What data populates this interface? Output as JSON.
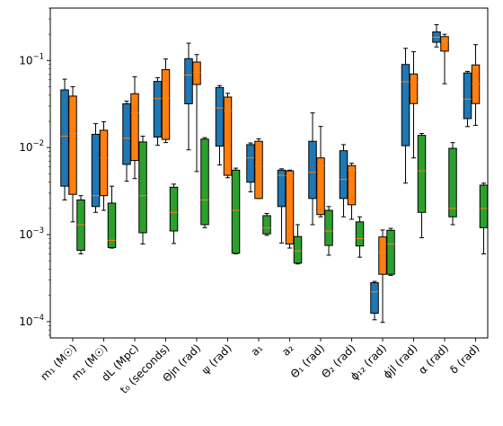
{
  "chart_data": {
    "type": "box",
    "title": "",
    "xlabel": "",
    "ylabel": "",
    "y_scale": "log",
    "ylim": [
      6.5e-05,
      0.4
    ],
    "y_ticks": [
      {
        "value": 0.0001,
        "base": "10",
        "exp": "−4"
      },
      {
        "value": 0.001,
        "base": "10",
        "exp": "−3"
      },
      {
        "value": 0.01,
        "base": "10",
        "exp": "−2"
      },
      {
        "value": 0.1,
        "base": "10",
        "exp": "−1"
      }
    ],
    "categories": [
      {
        "label": "m₁ (M☉)"
      },
      {
        "label": "m₂ (M☉)"
      },
      {
        "label": "dL (Mpc)"
      },
      {
        "label": "t₀ (seconds)"
      },
      {
        "label": "Θjn (rad)"
      },
      {
        "label": "ψ (rad)"
      },
      {
        "label": "a₁"
      },
      {
        "label": "a₂"
      },
      {
        "label": "Θ₁ (rad)"
      },
      {
        "label": "Θ₂ (rad)"
      },
      {
        "label": "ϕ₁₂ (rad)"
      },
      {
        "label": "ϕjl (rad)"
      },
      {
        "label": "α (rad)"
      },
      {
        "label": "δ (rad)"
      }
    ],
    "grid": false,
    "legend": "none",
    "series": [
      {
        "color": "#1f77b4",
        "boxes": [
          {
            "whislo": 0.0025,
            "q1": 0.0036,
            "med": 0.0135,
            "q3": 0.046,
            "whishi": 0.061
          },
          {
            "whislo": 0.0018,
            "q1": 0.0021,
            "med": 0.0028,
            "q3": 0.0142,
            "whishi": 0.0188
          },
          {
            "whislo": 0.0041,
            "q1": 0.0064,
            "med": 0.0128,
            "q3": 0.0318,
            "whishi": 0.0342
          },
          {
            "whislo": 0.0106,
            "q1": 0.0132,
            "med": 0.0365,
            "q3": 0.0575,
            "whishi": 0.0635
          },
          {
            "whislo": 0.0094,
            "q1": 0.0318,
            "med": 0.068,
            "q3": 0.105,
            "whishi": 0.158
          },
          {
            "whislo": 0.0063,
            "q1": 0.0104,
            "med": 0.0285,
            "q3": 0.049,
            "whishi": 0.0515
          },
          {
            "whislo": 0.0031,
            "q1": 0.004,
            "med": 0.0076,
            "q3": 0.0108,
            "whishi": 0.0113
          },
          {
            "whislo": 0.0008,
            "q1": 0.0021,
            "med": 0.0048,
            "q3": 0.0055,
            "whishi": 0.0057
          },
          {
            "whislo": 0.0013,
            "q1": 0.0026,
            "med": 0.0052,
            "q3": 0.0118,
            "whishi": 0.025
          },
          {
            "whislo": 0.0016,
            "q1": 0.0026,
            "med": 0.0043,
            "q3": 0.0092,
            "whishi": 0.0108
          },
          {
            "whislo": 0.000105,
            "q1": 0.000125,
            "med": 0.00022,
            "q3": 0.00028,
            "whishi": 0.00029
          },
          {
            "whislo": 0.0039,
            "q1": 0.0105,
            "med": 0.057,
            "q3": 0.09,
            "whishi": 0.138
          },
          {
            "whislo": 0.143,
            "q1": 0.162,
            "med": 0.185,
            "q3": 0.213,
            "whishi": 0.258
          },
          {
            "whislo": 0.0174,
            "q1": 0.0215,
            "med": 0.036,
            "q3": 0.072,
            "whishi": 0.075
          }
        ]
      },
      {
        "color": "#ff7f0e",
        "boxes": [
          {
            "whislo": 0.0014,
            "q1": 0.0029,
            "med": 0.0145,
            "q3": 0.039,
            "whishi": 0.05
          },
          {
            "whislo": 0.0019,
            "q1": 0.0028,
            "med": 0.0076,
            "q3": 0.0158,
            "whishi": 0.0198
          },
          {
            "whislo": 0.0044,
            "q1": 0.0071,
            "med": 0.025,
            "q3": 0.0415,
            "whishi": 0.065
          },
          {
            "whislo": 0.0114,
            "q1": 0.0124,
            "med": 0.037,
            "q3": 0.0785,
            "whishi": 0.104
          },
          {
            "whislo": 0.0053,
            "q1": 0.053,
            "med": 0.073,
            "q3": 0.096,
            "whishi": 0.117
          },
          {
            "whislo": 0.0045,
            "q1": 0.0048,
            "med": 0.0265,
            "q3": 0.038,
            "whishi": 0.042
          },
          {
            "whislo": 0.0026,
            "q1": 0.0026,
            "med": 0.0061,
            "q3": 0.0118,
            "whishi": 0.0126
          },
          {
            "whislo": 0.0007,
            "q1": 0.00078,
            "med": 0.0047,
            "q3": 0.0054,
            "whishi": 0.0055
          },
          {
            "whislo": 0.0016,
            "q1": 0.0017,
            "med": 0.0062,
            "q3": 0.0076,
            "whishi": 0.0175
          },
          {
            "whislo": 0.0015,
            "q1": 0.0022,
            "med": 0.0055,
            "q3": 0.0062,
            "whishi": 0.0066
          },
          {
            "whislo": 9.8e-05,
            "q1": 0.00035,
            "med": 0.00062,
            "q3": 0.00094,
            "whishi": 0.00113
          },
          {
            "whislo": 0.0076,
            "q1": 0.032,
            "med": 0.056,
            "q3": 0.07,
            "whishi": 0.126
          },
          {
            "whislo": 0.054,
            "q1": 0.128,
            "med": 0.17,
            "q3": 0.188,
            "whishi": 0.2
          },
          {
            "whislo": 0.018,
            "q1": 0.032,
            "med": 0.054,
            "q3": 0.089,
            "whishi": 0.152
          }
        ]
      },
      {
        "color": "#2ca02c",
        "boxes": [
          {
            "whislo": 0.0006,
            "q1": 0.00066,
            "med": 0.0013,
            "q3": 0.0025,
            "whishi": 0.0028
          },
          {
            "whislo": 0.0007,
            "q1": 0.00071,
            "med": 0.00086,
            "q3": 0.0023,
            "whishi": 0.0036
          },
          {
            "whislo": 0.00078,
            "q1": 0.00105,
            "med": 0.0028,
            "q3": 0.0116,
            "whishi": 0.0135
          },
          {
            "whislo": 0.00079,
            "q1": 0.0011,
            "med": 0.0018,
            "q3": 0.0035,
            "whishi": 0.0038
          },
          {
            "whislo": 0.0012,
            "q1": 0.0013,
            "med": 0.0025,
            "q3": 0.0125,
            "whishi": 0.013
          },
          {
            "whislo": 0.0006,
            "q1": 0.00061,
            "med": 0.0019,
            "q3": 0.0055,
            "whishi": 0.0058
          },
          {
            "whislo": 0.00098,
            "q1": 0.00102,
            "med": 0.0012,
            "q3": 0.00165,
            "whishi": 0.00175
          },
          {
            "whislo": 0.00046,
            "q1": 0.00047,
            "med": 0.00065,
            "q3": 0.00095,
            "whishi": 0.0013
          },
          {
            "whislo": 0.00058,
            "q1": 0.00075,
            "med": 0.0011,
            "q3": 0.0019,
            "whishi": 0.0021
          },
          {
            "whislo": 0.00055,
            "q1": 0.00074,
            "med": 0.0009,
            "q3": 0.0014,
            "whishi": 0.0016
          },
          {
            "whislo": 0.00034,
            "q1": 0.00035,
            "med": 0.00078,
            "q3": 0.00112,
            "whishi": 0.00118
          },
          {
            "whislo": 0.00092,
            "q1": 0.0018,
            "med": 0.0054,
            "q3": 0.0138,
            "whishi": 0.0145
          },
          {
            "whislo": 0.0013,
            "q1": 0.0016,
            "med": 0.002,
            "q3": 0.0098,
            "whishi": 0.0114
          },
          {
            "whislo": 0.0006,
            "q1": 0.0012,
            "med": 0.002,
            "q3": 0.0037,
            "whishi": 0.0039
          }
        ]
      }
    ]
  }
}
